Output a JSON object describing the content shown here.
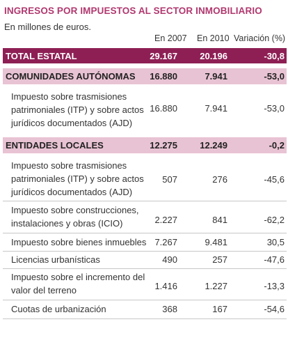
{
  "title": "INGRESOS POR IMPUESTOS AL SECTOR INMOBILIARIO",
  "subtitle": "En millones de euros.",
  "columns": [
    "En 2007",
    "En 2010",
    "Variación (%)"
  ],
  "chart_data": {
    "type": "table",
    "title": "INGRESOS POR IMPUESTOS AL SECTOR INMOBILIARIO",
    "columns": [
      "En 2007",
      "En 2010",
      "Variación (%)"
    ],
    "total": {
      "label": "TOTAL ESTATAL",
      "v2007": "29.167",
      "v2010": "20.196",
      "var": "-30,8"
    },
    "sections": [
      {
        "label": "COMUNIDADES AUTÓNOMAS",
        "v2007": "16.880",
        "v2010": "7.941",
        "var": "-53,0",
        "rows": [
          {
            "label": "Impuesto sobre trasmisiones patrimoniales (ITP) y sobre actos jurídicos documentados (AJD)",
            "v2007": "16.880",
            "v2010": "7.941",
            "var": "-53,0"
          }
        ]
      },
      {
        "label": "ENTIDADES LOCALES",
        "v2007": "12.275",
        "v2010": "12.249",
        "var": "-0,2",
        "rows": [
          {
            "label": "Impuesto sobre trasmisiones patrimoniales (ITP) y sobre actos jurídicos documentados (AJD)",
            "v2007": "507",
            "v2010": "276",
            "var": "-45,6"
          },
          {
            "label": "Impuesto sobre construcciones, instalaciones y obras (ICIO)",
            "v2007": "2.227",
            "v2010": "841",
            "var": "-62,2"
          },
          {
            "label": "Impuesto sobre bienes inmuebles",
            "v2007": "7.267",
            "v2010": "9.481",
            "var": "30,5"
          },
          {
            "label": "Licencias urbanísticas",
            "v2007": "490",
            "v2010": "257",
            "var": "-47,6"
          },
          {
            "label": "Impuesto sobre el incremento del valor del terreno",
            "v2007": "1.416",
            "v2010": "1.227",
            "var": "-13,3"
          },
          {
            "label": "Cuotas de urbanización",
            "v2007": "368",
            "v2010": "167",
            "var": "-54,6"
          }
        ]
      }
    ]
  }
}
